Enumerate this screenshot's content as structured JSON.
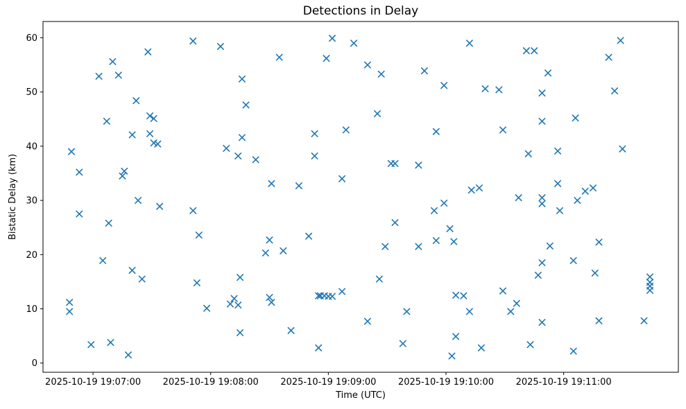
{
  "title": "Detections in Delay",
  "axes": {
    "xlabel": "Time (UTC)",
    "ylabel": "Bistatic Delay (km)"
  },
  "chart_data": {
    "type": "scatter",
    "title": "Detections in Delay",
    "xlabel": "Time (UTC)",
    "ylabel": "Bistatic Delay (km)",
    "date": "2025-10-19",
    "marker": "x",
    "marker_color": "#1f77b4",
    "grid": false,
    "legend": null,
    "x_ticks": [
      {
        "offset_s": 0,
        "label": "2025-10-19 19:07:00"
      },
      {
        "offset_s": 60,
        "label": "2025-10-19 19:08:00"
      },
      {
        "offset_s": 120,
        "label": "2025-10-19 19:09:00"
      },
      {
        "offset_s": 180,
        "label": "2025-10-19 19:10:00"
      },
      {
        "offset_s": 240,
        "label": "2025-10-19 19:11:00"
      }
    ],
    "y_ticks": [
      0,
      10,
      20,
      30,
      40,
      50,
      60
    ],
    "xlim_seconds_rel_19_07_00": [
      -25.5,
      298.5
    ],
    "ylim": [
      -1.7,
      63.0
    ],
    "points": [
      [
        "19:06:48",
        11.2
      ],
      [
        "19:06:48",
        9.5
      ],
      [
        "19:06:49",
        39.0
      ],
      [
        "19:06:53",
        35.2
      ],
      [
        "19:06:53",
        27.5
      ],
      [
        "19:06:59",
        3.4
      ],
      [
        "19:07:03",
        52.9
      ],
      [
        "19:07:05",
        18.9
      ],
      [
        "19:07:07",
        44.6
      ],
      [
        "19:07:08",
        25.8
      ],
      [
        "19:07:09",
        3.8
      ],
      [
        "19:07:10",
        55.6
      ],
      [
        "19:07:13",
        53.1
      ],
      [
        "19:07:15",
        34.5
      ],
      [
        "19:07:16",
        35.4
      ],
      [
        "19:07:18",
        1.5
      ],
      [
        "19:07:20",
        42.1
      ],
      [
        "19:07:20",
        17.1
      ],
      [
        "19:07:22",
        48.4
      ],
      [
        "19:07:23",
        30.0
      ],
      [
        "19:07:25",
        15.5
      ],
      [
        "19:07:28",
        57.4
      ],
      [
        "19:07:29",
        45.6
      ],
      [
        "19:07:29",
        42.3
      ],
      [
        "19:07:31",
        45.1
      ],
      [
        "19:07:31",
        40.6
      ],
      [
        "19:07:33",
        40.4
      ],
      [
        "19:07:34",
        28.9
      ],
      [
        "19:07:51",
        59.4
      ],
      [
        "19:07:51",
        28.1
      ],
      [
        "19:07:53",
        14.8
      ],
      [
        "19:07:54",
        23.6
      ],
      [
        "19:07:58",
        10.1
      ],
      [
        "19:08:05",
        58.4
      ],
      [
        "19:08:08",
        39.6
      ],
      [
        "19:08:10",
        10.9
      ],
      [
        "19:08:12",
        11.9
      ],
      [
        "19:08:14",
        38.2
      ],
      [
        "19:08:14",
        10.7
      ],
      [
        "19:08:15",
        15.8
      ],
      [
        "19:08:15",
        5.6
      ],
      [
        "19:08:16",
        52.4
      ],
      [
        "19:08:16",
        41.6
      ],
      [
        "19:08:18",
        47.6
      ],
      [
        "19:08:23",
        37.5
      ],
      [
        "19:08:28",
        20.3
      ],
      [
        "19:08:30",
        22.7
      ],
      [
        "19:08:30",
        12.1
      ],
      [
        "19:08:31",
        33.1
      ],
      [
        "19:08:31",
        11.2
      ],
      [
        "19:08:35",
        56.4
      ],
      [
        "19:08:37",
        20.7
      ],
      [
        "19:08:41",
        6.0
      ],
      [
        "19:08:45",
        32.7
      ],
      [
        "19:08:50",
        23.4
      ],
      [
        "19:08:53",
        42.3
      ],
      [
        "19:08:53",
        38.2
      ],
      [
        "19:08:55",
        12.4
      ],
      [
        "19:08:56",
        12.4
      ],
      [
        "19:08:55",
        2.8
      ],
      [
        "19:08:58",
        12.4
      ],
      [
        "19:08:59",
        56.2
      ],
      [
        "19:09:00",
        12.3
      ],
      [
        "19:09:02",
        59.9
      ],
      [
        "19:09:02",
        12.3
      ],
      [
        "19:09:07",
        34.0
      ],
      [
        "19:09:07",
        13.2
      ],
      [
        "19:09:09",
        43.0
      ],
      [
        "19:09:13",
        59.0
      ],
      [
        "19:09:20",
        55.0
      ],
      [
        "19:09:20",
        7.7
      ],
      [
        "19:09:25",
        46.0
      ],
      [
        "19:09:26",
        15.5
      ],
      [
        "19:09:27",
        53.3
      ],
      [
        "19:09:29",
        21.5
      ],
      [
        "19:09:32",
        36.8
      ],
      [
        "19:09:34",
        36.8
      ],
      [
        "19:09:34",
        25.9
      ],
      [
        "19:09:38",
        3.6
      ],
      [
        "19:09:40",
        9.5
      ],
      [
        "19:09:46",
        36.5
      ],
      [
        "19:09:46",
        21.5
      ],
      [
        "19:09:49",
        53.9
      ],
      [
        "19:09:54",
        28.1
      ],
      [
        "19:09:55",
        42.7
      ],
      [
        "19:09:55",
        22.6
      ],
      [
        "19:09:59",
        51.2
      ],
      [
        "19:09:59",
        29.5
      ],
      [
        "19:10:02",
        24.8
      ],
      [
        "19:10:03",
        1.3
      ],
      [
        "19:10:04",
        22.4
      ],
      [
        "19:10:05",
        12.5
      ],
      [
        "19:10:05",
        4.9
      ],
      [
        "19:10:09",
        12.4
      ],
      [
        "19:10:12",
        59.0
      ],
      [
        "19:10:12",
        9.5
      ],
      [
        "19:10:13",
        31.9
      ],
      [
        "19:10:17",
        32.3
      ],
      [
        "19:10:18",
        2.8
      ],
      [
        "19:10:20",
        50.6
      ],
      [
        "19:10:27",
        50.4
      ],
      [
        "19:10:29",
        43.0
      ],
      [
        "19:10:29",
        13.3
      ],
      [
        "19:10:33",
        9.5
      ],
      [
        "19:10:36",
        11.0
      ],
      [
        "19:10:37",
        30.5
      ],
      [
        "19:10:41",
        57.6
      ],
      [
        "19:10:42",
        38.6
      ],
      [
        "19:10:43",
        3.4
      ],
      [
        "19:10:45",
        57.6
      ],
      [
        "19:10:47",
        16.2
      ],
      [
        "19:10:49",
        49.8
      ],
      [
        "19:10:49",
        44.6
      ],
      [
        "19:10:49",
        30.5
      ],
      [
        "19:10:49",
        29.4
      ],
      [
        "19:10:49",
        18.5
      ],
      [
        "19:10:49",
        7.5
      ],
      [
        "19:10:52",
        53.5
      ],
      [
        "19:10:53",
        21.6
      ],
      [
        "19:10:57",
        39.1
      ],
      [
        "19:10:57",
        33.1
      ],
      [
        "19:10:58",
        28.1
      ],
      [
        "19:11:05",
        18.9
      ],
      [
        "19:11:05",
        2.2
      ],
      [
        "19:11:06",
        45.2
      ],
      [
        "19:11:07",
        30.0
      ],
      [
        "19:11:11",
        31.7
      ],
      [
        "19:11:15",
        32.3
      ],
      [
        "19:11:16",
        16.6
      ],
      [
        "19:11:18",
        22.3
      ],
      [
        "19:11:18",
        7.8
      ],
      [
        "19:11:23",
        56.4
      ],
      [
        "19:11:26",
        50.2
      ],
      [
        "19:11:29",
        59.5
      ],
      [
        "19:11:30",
        39.5
      ],
      [
        "19:11:41",
        7.8
      ],
      [
        "19:11:44",
        15.9
      ],
      [
        "19:11:44",
        14.9
      ],
      [
        "19:11:44",
        14.2
      ],
      [
        "19:11:44",
        13.4
      ]
    ]
  }
}
